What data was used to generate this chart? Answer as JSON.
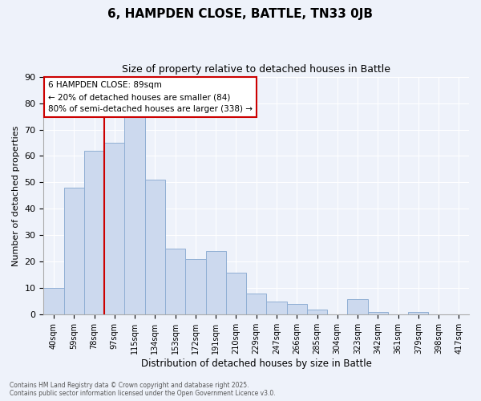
{
  "title": "6, HAMPDEN CLOSE, BATTLE, TN33 0JB",
  "subtitle": "Size of property relative to detached houses in Battle",
  "xlabel": "Distribution of detached houses by size in Battle",
  "ylabel": "Number of detached properties",
  "bar_color": "#ccd9ee",
  "bar_edge_color": "#90afd4",
  "background_color": "#eef2fa",
  "grid_color": "#ffffff",
  "categories": [
    "40sqm",
    "59sqm",
    "78sqm",
    "97sqm",
    "115sqm",
    "134sqm",
    "153sqm",
    "172sqm",
    "191sqm",
    "210sqm",
    "229sqm",
    "247sqm",
    "266sqm",
    "285sqm",
    "304sqm",
    "323sqm",
    "342sqm",
    "361sqm",
    "379sqm",
    "398sqm",
    "417sqm"
  ],
  "values": [
    10,
    48,
    62,
    65,
    75,
    51,
    25,
    21,
    24,
    16,
    8,
    5,
    4,
    2,
    0,
    6,
    1,
    0,
    1,
    0,
    0
  ],
  "ylim": [
    0,
    90
  ],
  "yticks": [
    0,
    10,
    20,
    30,
    40,
    50,
    60,
    70,
    80,
    90
  ],
  "vline_x_index": 3,
  "vline_color": "#cc0000",
  "annotation_title": "6 HAMPDEN CLOSE: 89sqm",
  "annotation_line1": "← 20% of detached houses are smaller (84)",
  "annotation_line2": "80% of semi-detached houses are larger (338) →",
  "annotation_box_color": "#ffffff",
  "annotation_box_edge": "#cc0000",
  "footer_line1": "Contains HM Land Registry data © Crown copyright and database right 2025.",
  "footer_line2": "Contains public sector information licensed under the Open Government Licence v3.0."
}
